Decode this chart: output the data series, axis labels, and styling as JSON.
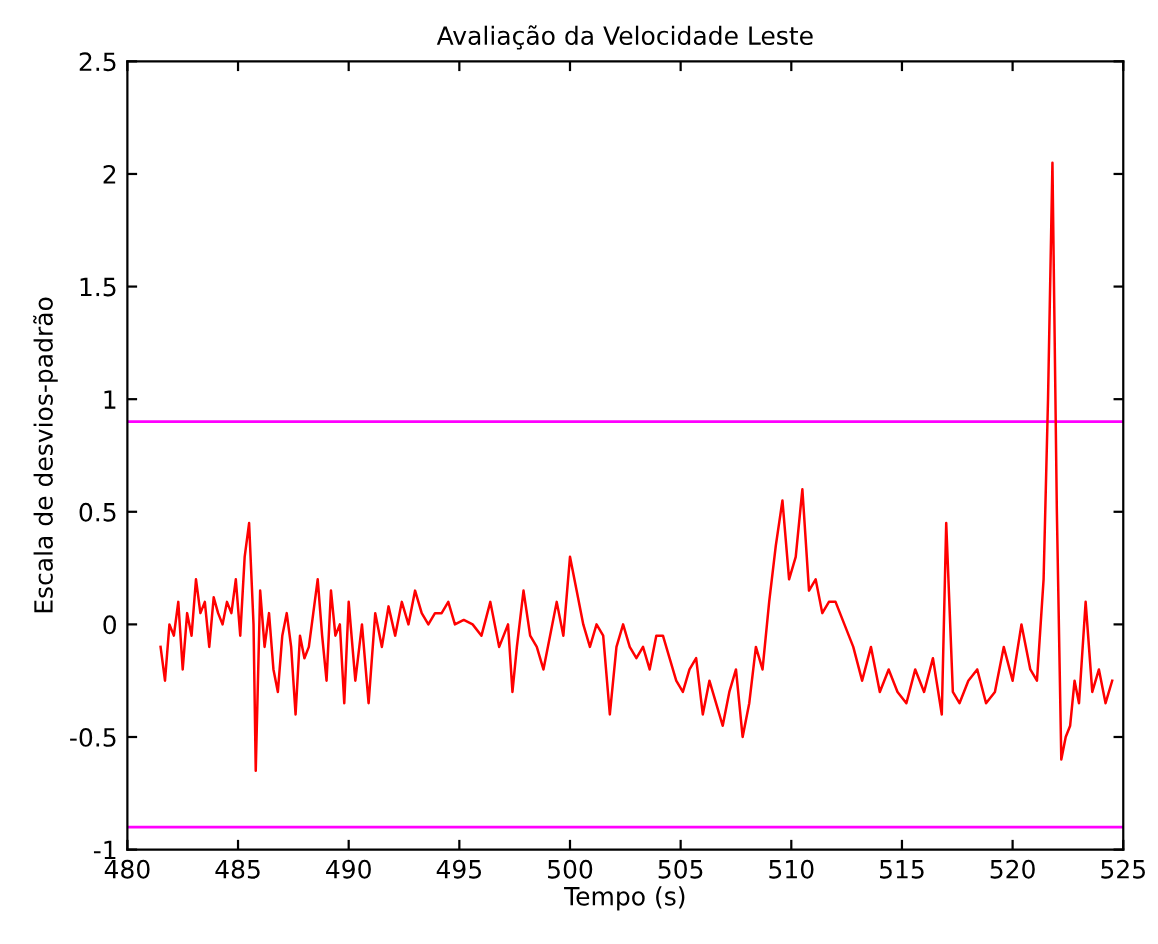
{
  "chart_data": {
    "type": "line",
    "title": "Avaliação da Velocidade Leste",
    "xlabel": "Tempo (s)",
    "ylabel": "Escala de desvios-padrão",
    "xlim": [
      480,
      525
    ],
    "ylim": [
      -1,
      2.5
    ],
    "xticks": [
      480,
      485,
      490,
      495,
      500,
      505,
      510,
      515,
      520,
      525
    ],
    "yticks": [
      -1,
      -0.5,
      0,
      0.5,
      1,
      1.5,
      2,
      2.5
    ],
    "grid": false,
    "legend": false,
    "ref_lines": [
      {
        "axis": "y",
        "value": 0.9,
        "color": "#ff00ff"
      },
      {
        "axis": "y",
        "value": -0.9,
        "color": "#ff00ff"
      }
    ],
    "series": [
      {
        "color": "#ff0000",
        "x": [
          481.5,
          481.7,
          481.9,
          482.1,
          482.3,
          482.5,
          482.7,
          482.9,
          483.1,
          483.3,
          483.5,
          483.7,
          483.9,
          484.1,
          484.3,
          484.5,
          484.7,
          484.9,
          485.1,
          485.3,
          485.5,
          485.7,
          485.8,
          486.0,
          486.2,
          486.4,
          486.6,
          486.8,
          487.0,
          487.2,
          487.4,
          487.6,
          487.8,
          488.0,
          488.2,
          488.4,
          488.6,
          488.8,
          489.0,
          489.2,
          489.4,
          489.6,
          489.8,
          490.0,
          490.3,
          490.6,
          490.9,
          491.2,
          491.5,
          491.8,
          492.1,
          492.4,
          492.7,
          493.0,
          493.3,
          493.6,
          493.9,
          494.2,
          494.5,
          494.8,
          495.2,
          495.6,
          496.0,
          496.4,
          496.8,
          497.2,
          497.4,
          497.6,
          497.9,
          498.2,
          498.5,
          498.8,
          499.1,
          499.4,
          499.7,
          500.0,
          500.3,
          500.6,
          500.9,
          501.2,
          501.5,
          501.8,
          502.1,
          502.4,
          502.7,
          503.0,
          503.3,
          503.6,
          503.9,
          504.2,
          504.5,
          504.8,
          505.1,
          505.4,
          505.7,
          506.0,
          506.3,
          506.6,
          506.9,
          507.2,
          507.5,
          507.8,
          508.1,
          508.4,
          508.7,
          509.0,
          509.3,
          509.6,
          509.9,
          510.2,
          510.5,
          510.8,
          511.1,
          511.4,
          511.7,
          512.0,
          512.4,
          512.8,
          513.2,
          513.6,
          514.0,
          514.4,
          514.8,
          515.2,
          515.6,
          516.0,
          516.4,
          516.8,
          517.0,
          517.3,
          517.6,
          518.0,
          518.4,
          518.8,
          519.2,
          519.6,
          520.0,
          520.4,
          520.8,
          521.1,
          521.4,
          521.6,
          521.8,
          522.0,
          522.2,
          522.4,
          522.6,
          522.8,
          523.0,
          523.3,
          523.6,
          523.9,
          524.2,
          524.5
        ],
        "values": [
          -0.1,
          -0.25,
          0.0,
          -0.05,
          0.1,
          -0.2,
          0.05,
          -0.05,
          0.2,
          0.05,
          0.1,
          -0.1,
          0.12,
          0.05,
          0.0,
          0.1,
          0.05,
          0.2,
          -0.05,
          0.3,
          0.45,
          0.0,
          -0.65,
          0.15,
          -0.1,
          0.05,
          -0.2,
          -0.3,
          -0.05,
          0.05,
          -0.1,
          -0.4,
          -0.05,
          -0.15,
          -0.1,
          0.05,
          0.2,
          -0.05,
          -0.25,
          0.15,
          -0.05,
          0.0,
          -0.35,
          0.1,
          -0.25,
          0.0,
          -0.35,
          0.05,
          -0.1,
          0.08,
          -0.05,
          0.1,
          0.0,
          0.15,
          0.05,
          0.0,
          0.05,
          0.05,
          0.1,
          0.0,
          0.02,
          0.0,
          -0.05,
          0.1,
          -0.1,
          0.0,
          -0.3,
          -0.1,
          0.15,
          -0.05,
          -0.1,
          -0.2,
          -0.05,
          0.1,
          -0.05,
          0.3,
          0.15,
          0.0,
          -0.1,
          0.0,
          -0.05,
          -0.4,
          -0.1,
          0.0,
          -0.1,
          -0.15,
          -0.1,
          -0.2,
          -0.05,
          -0.05,
          -0.15,
          -0.25,
          -0.3,
          -0.2,
          -0.15,
          -0.4,
          -0.25,
          -0.35,
          -0.45,
          -0.3,
          -0.2,
          -0.5,
          -0.35,
          -0.1,
          -0.2,
          0.1,
          0.35,
          0.55,
          0.2,
          0.3,
          0.6,
          0.15,
          0.2,
          0.05,
          0.1,
          0.1,
          0.0,
          -0.1,
          -0.25,
          -0.1,
          -0.3,
          -0.2,
          -0.3,
          -0.35,
          -0.2,
          -0.3,
          -0.15,
          -0.4,
          0.45,
          -0.3,
          -0.35,
          -0.25,
          -0.2,
          -0.35,
          -0.3,
          -0.1,
          -0.25,
          0.0,
          -0.2,
          -0.25,
          0.2,
          1.0,
          2.05,
          0.5,
          -0.6,
          -0.5,
          -0.45,
          -0.25,
          -0.35,
          0.1,
          -0.3,
          -0.2,
          -0.35,
          -0.25
        ]
      }
    ]
  }
}
